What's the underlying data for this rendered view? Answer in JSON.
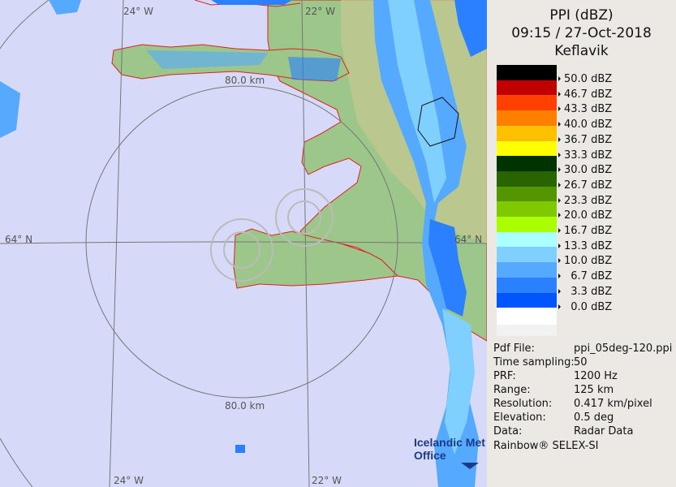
{
  "map": {
    "grid_labels": {
      "lon_top_left": "24° W",
      "lon_top_right": "22° W",
      "lat_left": "64° N",
      "lat_right": "64° N",
      "lon_bottom_left": "24° W",
      "lon_bottom_right": "22° W"
    },
    "range_labels": {
      "top": "80.0 km",
      "bottom": "80.0 km"
    },
    "logo": {
      "line1": "Icelandic Met",
      "line2": "Office"
    },
    "colors": {
      "sea": "#d6daf8",
      "land": "#8fbf80",
      "coast": "#e02020",
      "grid": "#777777"
    }
  },
  "panel": {
    "title": "PPI (dBZ)",
    "time": "09:15 / 27-Oct-2018",
    "site": "Keflavik",
    "legend": [
      {
        "color": "#000000",
        "label": "50.0 dBZ"
      },
      {
        "color": "#c00000",
        "label": "46.7 dBZ"
      },
      {
        "color": "#ff4000",
        "label": "43.3 dBZ"
      },
      {
        "color": "#ff8000",
        "label": "40.0 dBZ"
      },
      {
        "color": "#ffc000",
        "label": "36.7 dBZ"
      },
      {
        "color": "#ffff00",
        "label": "33.3 dBZ"
      },
      {
        "color": "#003300",
        "label": "30.0 dBZ"
      },
      {
        "color": "#286400",
        "label": "26.7 dBZ"
      },
      {
        "color": "#549600",
        "label": "23.3 dBZ"
      },
      {
        "color": "#80c800",
        "label": "20.0 dBZ"
      },
      {
        "color": "#aaff00",
        "label": "16.7 dBZ"
      },
      {
        "color": "#aaffff",
        "label": "13.3 dBZ"
      },
      {
        "color": "#80d0ff",
        "label": "10.0 dBZ"
      },
      {
        "color": "#55aaff",
        "label": "  6.7 dBZ"
      },
      {
        "color": "#2a80ff",
        "label": "  3.3 dBZ"
      },
      {
        "color": "#0055ff",
        "label": "  0.0 dBZ"
      },
      {
        "color": "#ffffff",
        "label": ""
      }
    ],
    "info": [
      {
        "key": "Pdf File:",
        "value": "ppi_05deg-120.ppi"
      },
      {
        "key": "Time sampling:",
        "value": "50"
      },
      {
        "key": "PRF:",
        "value": "1200 Hz"
      },
      {
        "key": "Range:",
        "value": "125 km"
      },
      {
        "key": "Resolution:",
        "value": "0.417 km/pixel"
      },
      {
        "key": "Elevation:",
        "value": "0.5 deg"
      },
      {
        "key": "Data:",
        "value": "Radar Data"
      }
    ],
    "footer": "Rainbow® SELEX-SI"
  }
}
